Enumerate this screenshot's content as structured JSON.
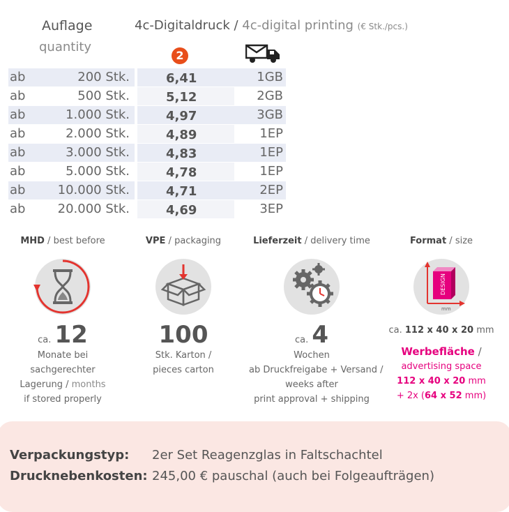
{
  "header": {
    "quantity_de": "Auflage",
    "quantity_en": "quantity",
    "print_de": "4c-Digitaldruck",
    "print_sep": " / ",
    "print_en": "4c-digital printing",
    "print_unit": "(€ Stk./pcs.)",
    "badge": "2",
    "truck_icon": "truck-mail-icon"
  },
  "rows": [
    {
      "ab": "ab",
      "qty": "200 Stk.",
      "price": "6,41",
      "ship": "1GB"
    },
    {
      "ab": "ab",
      "qty": "500 Stk.",
      "price": "5,12",
      "ship": "2GB"
    },
    {
      "ab": "ab",
      "qty": "1.000 Stk.",
      "price": "4,97",
      "ship": "3GB"
    },
    {
      "ab": "ab",
      "qty": "2.000 Stk.",
      "price": "4,89",
      "ship": "1EP"
    },
    {
      "ab": "ab",
      "qty": "3.000 Stk.",
      "price": "4,83",
      "ship": "1EP"
    },
    {
      "ab": "ab",
      "qty": "5.000 Stk.",
      "price": "4,78",
      "ship": "1EP"
    },
    {
      "ab": "ab",
      "qty": "10.000 Stk.",
      "price": "4,71",
      "ship": "2EP"
    },
    {
      "ab": "ab",
      "qty": "20.000 Stk.",
      "price": "4,69",
      "ship": "3EP"
    }
  ],
  "features": {
    "mhd": {
      "title_de": "MHD",
      "title_en": "best before",
      "icon": "hourglass-icon",
      "ca": "ca.",
      "value": "12",
      "line1": "Monate bei",
      "line2": "sachgerechter",
      "line3_de": "Lagerung",
      "line3_en": "months",
      "line4": "if stored properly"
    },
    "vpe": {
      "title_de": "VPE",
      "title_en": "packaging",
      "icon": "box-icon",
      "value": "100",
      "line1": "Stk. Karton /",
      "line2": "pieces carton"
    },
    "delivery": {
      "title_de": "Lieferzeit",
      "title_en": "delivery time",
      "icon": "gears-clock-icon",
      "ca": "ca.",
      "value": "4",
      "line1": "Wochen",
      "line2": "ab Druckfreigabe + Versand /",
      "line3": "weeks after",
      "line4": "print approval + shipping"
    },
    "format": {
      "title_de": "Format",
      "title_en": "size",
      "icon": "design-box-icon",
      "icon_text": "DESIGN",
      "icon_unit": "mm",
      "size_ca": "ca.",
      "size_value": "112 x 40 x 20",
      "size_unit": "mm",
      "ad_de": "Werbefläche",
      "ad_sep": " /",
      "ad_en": "advertising space",
      "ad_size1": "112 x 40 x 20",
      "ad_unit1": "mm",
      "ad_prefix2": "+ 2x (",
      "ad_size2": "64 x 52",
      "ad_unit2": "mm)"
    }
  },
  "bottom": {
    "packaging_label": "Verpackungstyp:",
    "packaging_value": "2er Set Reagenzglas in Faltschachtel",
    "costs_label": "Drucknebenkosten:",
    "costs_value": "245,00 € pauschal (auch bei Folgeaufträgen)"
  },
  "colors": {
    "badge": "#e84e1b",
    "accent_pink": "#e6007e",
    "row_shade": "#e9ecf5",
    "bottom_bg": "#fbe7e3"
  }
}
